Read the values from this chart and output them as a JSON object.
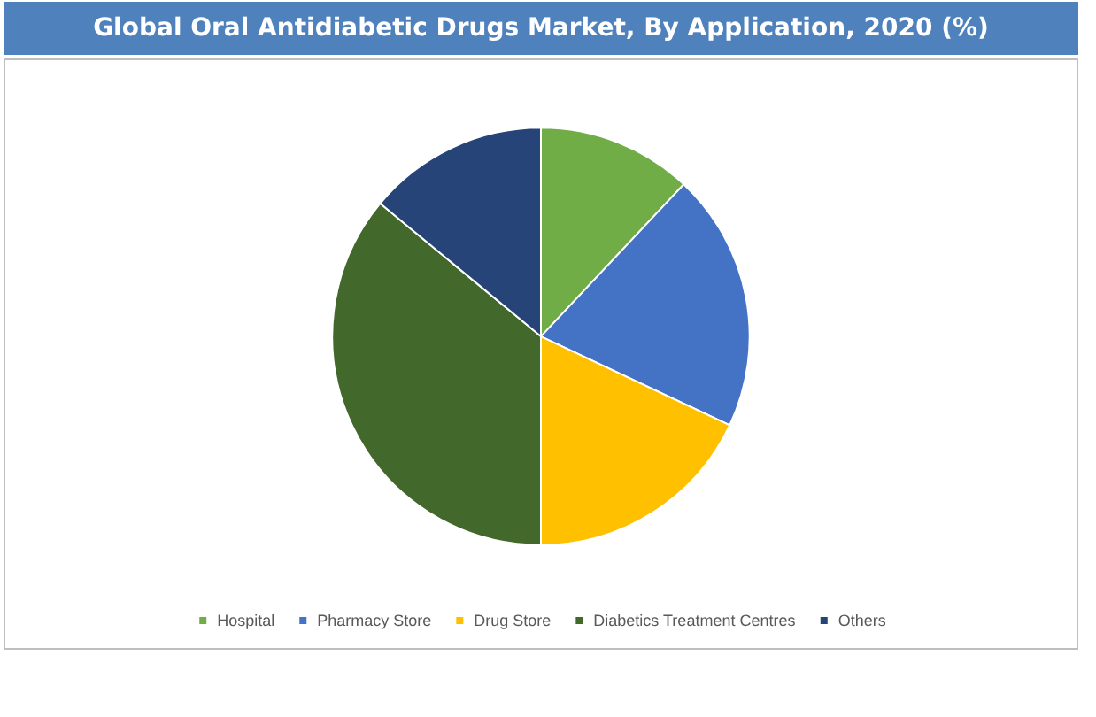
{
  "chart_data": {
    "type": "pie",
    "title": "Global Oral Antidiabetic Drugs Market, By Application, 2020 (%)",
    "categories": [
      "Hospital",
      "Pharmacy Store",
      "Drug Store",
      "Diabetics Treatment Centres",
      "Others"
    ],
    "values": [
      12,
      20,
      18,
      36,
      14
    ],
    "colors": [
      "#70ad47",
      "#4472c4",
      "#ffc000",
      "#43682b",
      "#264478"
    ],
    "legend": "bottom"
  }
}
